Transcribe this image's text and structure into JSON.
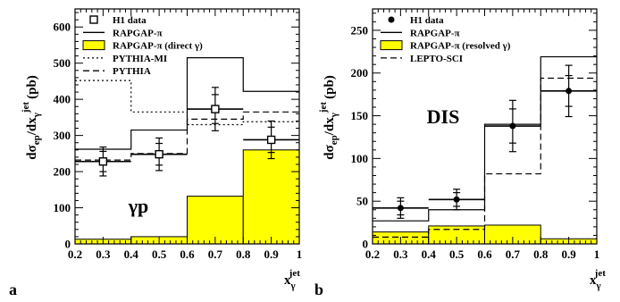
{
  "chart_data": [
    {
      "panel_label": "a",
      "type": "histogram",
      "annotation": "γp",
      "ylabel": "dσep/dxγjet (pb)",
      "xlabel": "xγjet",
      "xlim": [
        0.2,
        1.0
      ],
      "ylim": [
        0,
        650
      ],
      "x_ticks": [
        "0.2",
        "0.3",
        "0.4",
        "0.5",
        "0.6",
        "0.7",
        "0.8",
        "0.9",
        "1"
      ],
      "y_ticks": [
        "0",
        "100",
        "200",
        "300",
        "400",
        "500",
        "600"
      ],
      "bin_edges": [
        0.2,
        0.4,
        0.6,
        0.8,
        1.0
      ],
      "legend": [
        "H1 data",
        "RAPGAP-π",
        "RAPGAP-π (direct γ)",
        "PYTHIA-MI",
        "PYTHIA"
      ],
      "data": {
        "name": "H1 data",
        "x": [
          0.3,
          0.5,
          0.7,
          0.9
        ],
        "y": [
          228,
          248,
          373,
          288
        ],
        "err_inner": [
          28,
          30,
          40,
          35
        ],
        "err_total": [
          40,
          45,
          60,
          52
        ]
      },
      "series": [
        {
          "name": "RAPGAP-π",
          "style": "solid",
          "values": [
            262,
            315,
            515,
            422
          ]
        },
        {
          "name": "RAPGAP-π (direct γ)",
          "style": "filled",
          "values": [
            13,
            20,
            132,
            260
          ]
        },
        {
          "name": "PYTHIA-MI",
          "style": "dotted",
          "values": [
            452,
            365,
            330,
            338
          ]
        },
        {
          "name": "PYTHIA",
          "style": "dashed",
          "values": [
            232,
            250,
            345,
            365
          ]
        }
      ]
    },
    {
      "panel_label": "b",
      "type": "histogram",
      "annotation": "DIS",
      "ylabel": "dσep/dxγjet (pb)",
      "xlabel": "xγjet",
      "xlim": [
        0.2,
        1.0
      ],
      "ylim": [
        0,
        275
      ],
      "x_ticks": [
        "0.2",
        "0.3",
        "0.4",
        "0.5",
        "0.6",
        "0.7",
        "0.8",
        "0.9",
        "1"
      ],
      "y_ticks": [
        "0",
        "50",
        "100",
        "150",
        "200",
        "250"
      ],
      "bin_edges": [
        0.2,
        0.4,
        0.6,
        0.8,
        1.0
      ],
      "legend": [
        "H1 data",
        "RAPGAP-π",
        "RAPGAP-π (resolved γ)",
        "LEPTO-SCI"
      ],
      "data": {
        "name": "H1 data",
        "x": [
          0.3,
          0.5,
          0.7,
          0.9
        ],
        "y": [
          42,
          52,
          138,
          179
        ],
        "err_inner": [
          8,
          8,
          20,
          18
        ],
        "err_total": [
          12,
          12,
          30,
          30
        ]
      },
      "series": [
        {
          "name": "RAPGAP-π",
          "style": "solid",
          "values": [
            27,
            40,
            140,
            219
          ]
        },
        {
          "name": "RAPGAP-π (resolved γ)",
          "style": "filled",
          "values": [
            14,
            21,
            22,
            6
          ]
        },
        {
          "name": "LEPTO-SCI",
          "style": "dashed",
          "values": [
            8,
            17,
            82,
            194
          ]
        }
      ]
    }
  ],
  "colors": {
    "fill": "#ffff00",
    "line": "#000000"
  }
}
